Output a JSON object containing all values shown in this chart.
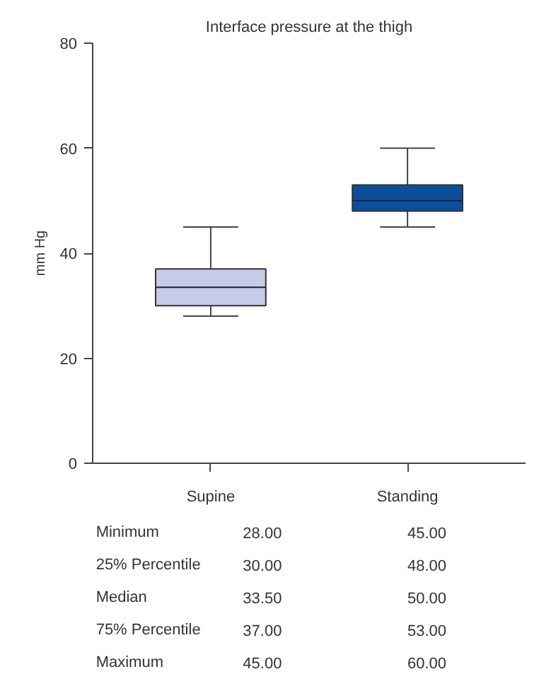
{
  "chart_data": {
    "type": "box",
    "title": "Interface pressure at the thigh",
    "ylabel": "mm Hg",
    "categories": [
      "Supine",
      "Standing"
    ],
    "boxes": [
      {
        "low": 28.0,
        "q1": 30.0,
        "median": 33.5,
        "q3": 37.0,
        "high": 45.0
      },
      {
        "low": 45.0,
        "q1": 48.0,
        "median": 50.0,
        "q3": 53.0,
        "high": 60.0
      }
    ],
    "colors": [
      "#c5cbe8",
      "#0b4f9c"
    ],
    "ylim": [
      0,
      80
    ],
    "yticks": [
      0,
      20,
      40,
      60,
      80
    ],
    "grid": false,
    "value_labels": [
      [
        "28.00",
        "30.00",
        "33.50",
        "37.00",
        "45.00"
      ],
      [
        "45.00",
        "48.00",
        "50.00",
        "53.00",
        "60.00"
      ]
    ],
    "annotations": [
      "Minimum",
      "25% Percentile",
      "Median",
      "75% Percentile",
      "Maximum"
    ]
  }
}
